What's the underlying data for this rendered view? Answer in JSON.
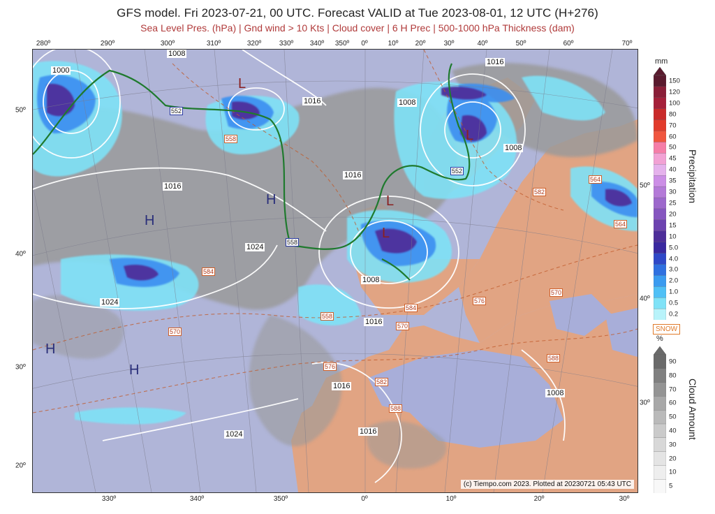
{
  "title": "GFS model. Fri 2023-07-21, 00 UTC. Forecast VALID at Tue 2023-08-01, 12 UTC (H+276)",
  "subtitle": "Sea Level Pres. (hPa) | Gnd wind > 10 Kts | Cloud cover | 6 H Prec | 500-1000 hPa Thickness (dam)",
  "map": {
    "top_ticks": [
      "280º",
      "290º",
      "300º",
      "310º",
      "320º",
      "330º",
      "340º",
      "350º",
      "0º",
      "10º",
      "20º",
      "30º",
      "40º",
      "50º",
      "60º",
      "70º"
    ],
    "bottom_ticks": [
      "330º",
      "340º",
      "350º",
      "0º",
      "10º",
      "20º",
      "30º"
    ],
    "left_ticks": [
      "50º",
      "40º",
      "30º",
      "20º"
    ],
    "right_ticks": [
      "50º",
      "40º",
      "30º"
    ],
    "pressure_labels": [
      "1000",
      "1008",
      "1016",
      "1008",
      "1016",
      "1008",
      "1016",
      "1024",
      "1008",
      "1024",
      "1016",
      "1016",
      "1024",
      "1008",
      "1016",
      "1016"
    ],
    "thickness_labels": [
      "552",
      "558",
      "552",
      "558",
      "552",
      "564",
      "584",
      "588",
      "576",
      "570",
      "584",
      "570",
      "576",
      "582",
      "588",
      "582",
      "564",
      "570",
      "576",
      "564",
      "558"
    ],
    "centers": [
      "H",
      "H",
      "H",
      "H",
      "L",
      "L",
      "L",
      "L"
    ],
    "credit": "(c) Tiempo.com 2023. Plotted at 20230721 05:43 UTC"
  },
  "legend": {
    "precip_unit": "mm",
    "precip_title": "Precipitation",
    "precip_values": [
      "150",
      "120",
      "100",
      "80",
      "70",
      "60",
      "50",
      "45",
      "40",
      "35",
      "30",
      "25",
      "20",
      "15",
      "10",
      "5.0",
      "4.0",
      "3.0",
      "2.0",
      "1.0",
      "0.5",
      "0.2"
    ],
    "precip_colors": [
      "#5a1a2e",
      "#8a1e38",
      "#a5203a",
      "#c92a2a",
      "#e23b2b",
      "#f0563f",
      "#f57ea8",
      "#f2a2d4",
      "#e5b2ec",
      "#cc8ee6",
      "#b47ad8",
      "#9d68cc",
      "#8656c0",
      "#6c42b0",
      "#4e2e9a",
      "#3a28a0",
      "#2f48c8",
      "#2f70e0",
      "#3a9bf0",
      "#4fc0f6",
      "#7fe2f7",
      "#b8f3fa"
    ],
    "snow_label": "SNOW",
    "cloud_unit": "%",
    "cloud_title": "Cloud Amount",
    "cloud_values": [
      "90",
      "80",
      "70",
      "60",
      "50",
      "40",
      "30",
      "20",
      "10",
      "5"
    ],
    "cloud_colors": [
      "#6a6a6a",
      "#808080",
      "#949494",
      "#a8a8a8",
      "#bababa",
      "#cacaca",
      "#d8d8d8",
      "#e4e4e4",
      "#eeeeee",
      "#f8f8f8"
    ]
  }
}
